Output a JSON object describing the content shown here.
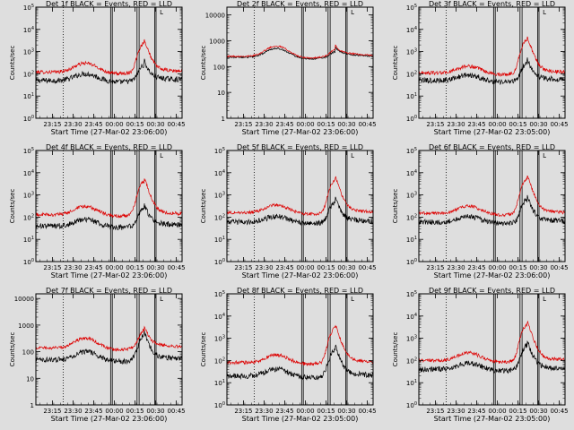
{
  "figure": {
    "x_ticks": [
      "23:15",
      "23:30",
      "23:45",
      "00:00",
      "00:15",
      "00:30",
      "00:45"
    ],
    "x_tick_hours": [
      -0.75,
      -0.5,
      -0.25,
      0,
      0.25,
      0.5,
      0.75
    ],
    "x_range_hours": [
      -0.95,
      0.82
    ],
    "xlabel": "Start Time (27-Mar-02 23:06:00)",
    "xlabel_alt": "Start Time (27-Mar-02 23:05:00)",
    "ylabel": "Counts/sec",
    "flare_marker_label": "L",
    "vertical_lines": {
      "dotted_hours": [
        -0.62
      ],
      "solid_pairs_hours": [
        [
          -0.045,
          -0.025
        ],
        [
          0.275,
          0.3
        ],
        [
          0.49,
          0.505
        ]
      ]
    },
    "colors": {
      "events": "#000000",
      "lld": "#dd0000",
      "background": "#dedede",
      "frame": "#000000"
    }
  },
  "chart_data": [
    {
      "type": "line",
      "title": "Det 1f BLACK = Events, RED = LLD",
      "xlabel": "Start Time (27-Mar-02 23:06:00)",
      "ylabel": "Counts/sec",
      "y_scale": "log",
      "ylim": [
        1,
        100000
      ],
      "y_ticks": [
        "10^0",
        "10^1",
        "10^2",
        "10^3",
        "10^4",
        "10^5"
      ],
      "series": [
        {
          "name": "Events",
          "color": "#000000",
          "base": 50,
          "bump": 2.0,
          "peak": 5,
          "peak_hour": 0.36,
          "noise": 0.12
        },
        {
          "name": "LLD",
          "color": "#dd0000",
          "base": 120,
          "bump": 2.5,
          "peak": 20,
          "peak_hour": 0.36,
          "noise": 0.08
        }
      ]
    },
    {
      "type": "line",
      "title": "Det 2f BLACK = Events, RED = LLD",
      "xlabel": "Start Time (27-Mar-02 23:06:00)",
      "ylabel": "Counts/sec",
      "y_scale": "log",
      "ylim": [
        1,
        20000
      ],
      "y_ticks": [
        "1",
        "10",
        "100",
        "1000",
        "10000"
      ],
      "series": [
        {
          "name": "Events",
          "color": "#000000",
          "base": 230,
          "bump": 2.2,
          "peak": 1.6,
          "peak_hour": 0.36,
          "noise": 0.03
        },
        {
          "name": "LLD",
          "color": "#dd0000",
          "base": 250,
          "bump": 2.5,
          "peak": 1.8,
          "peak_hour": 0.36,
          "noise": 0.03
        }
      ]
    },
    {
      "type": "line",
      "title": "Det 3f BLACK = Events, RED = LLD",
      "xlabel": "Start Time (27-Mar-02 23:05:00)",
      "ylabel": "Counts/sec",
      "y_scale": "log",
      "ylim": [
        1,
        100000
      ],
      "y_ticks": [
        "10^0",
        "10^1",
        "10^2",
        "10^3",
        "10^4",
        "10^5"
      ],
      "series": [
        {
          "name": "Events",
          "color": "#000000",
          "base": 50,
          "bump": 1.8,
          "peak": 6,
          "peak_hour": 0.36,
          "noise": 0.12
        },
        {
          "name": "LLD",
          "color": "#dd0000",
          "base": 110,
          "bump": 2.0,
          "peak": 30,
          "peak_hour": 0.36,
          "noise": 0.08
        }
      ]
    },
    {
      "type": "line",
      "title": "Det 4f BLACK = Events, RED = LLD",
      "xlabel": "Start Time (27-Mar-02 23:06:00)",
      "ylabel": "Counts/sec",
      "y_scale": "log",
      "ylim": [
        1,
        100000
      ],
      "y_ticks": [
        "10^0",
        "10^1",
        "10^2",
        "10^3",
        "10^4",
        "10^5"
      ],
      "series": [
        {
          "name": "Events",
          "color": "#000000",
          "base": 40,
          "bump": 2.0,
          "peak": 6,
          "peak_hour": 0.36,
          "noise": 0.12
        },
        {
          "name": "LLD",
          "color": "#dd0000",
          "base": 130,
          "bump": 2.3,
          "peak": 30,
          "peak_hour": 0.36,
          "noise": 0.08
        }
      ]
    },
    {
      "type": "line",
      "title": "Det 5f BLACK = Events, RED = LLD",
      "xlabel": "Start Time (27-Mar-02 23:06:00)",
      "ylabel": "Counts/sec",
      "y_scale": "log",
      "ylim": [
        1,
        100000
      ],
      "y_ticks": [
        "10^0",
        "10^1",
        "10^2",
        "10^3",
        "10^4",
        "10^5"
      ],
      "series": [
        {
          "name": "Events",
          "color": "#000000",
          "base": 60,
          "bump": 1.8,
          "peak": 8,
          "peak_hour": 0.36,
          "noise": 0.12
        },
        {
          "name": "LLD",
          "color": "#dd0000",
          "base": 160,
          "bump": 2.2,
          "peak": 28,
          "peak_hour": 0.36,
          "noise": 0.07
        }
      ]
    },
    {
      "type": "line",
      "title": "Det 6f BLACK = Events, RED = LLD",
      "xlabel": "Start Time (27-Mar-02 23:06:00)",
      "ylabel": "Counts/sec",
      "y_scale": "log",
      "ylim": [
        1,
        100000
      ],
      "y_ticks": [
        "10^0",
        "10^1",
        "10^2",
        "10^3",
        "10^4",
        "10^5"
      ],
      "series": [
        {
          "name": "Events",
          "color": "#000000",
          "base": 60,
          "bump": 1.8,
          "peak": 10,
          "peak_hour": 0.36,
          "noise": 0.12
        },
        {
          "name": "LLD",
          "color": "#dd0000",
          "base": 150,
          "bump": 2.1,
          "peak": 35,
          "peak_hour": 0.36,
          "noise": 0.07
        }
      ]
    },
    {
      "type": "line",
      "title": "Det 7f BLACK = Events, RED = LLD",
      "xlabel": "Start Time (27-Mar-02 23:06:00)",
      "ylabel": "Counts/sec",
      "y_scale": "log",
      "ylim": [
        1,
        15000
      ],
      "y_ticks": [
        "1",
        "10",
        "100",
        "1000",
        "10000"
      ],
      "series": [
        {
          "name": "Events",
          "color": "#000000",
          "base": 50,
          "bump": 2.0,
          "peak": 8,
          "peak_hour": 0.36,
          "noise": 0.1
        },
        {
          "name": "LLD",
          "color": "#dd0000",
          "base": 140,
          "bump": 2.3,
          "peak": 4.5,
          "peak_hour": 0.36,
          "noise": 0.06
        }
      ]
    },
    {
      "type": "line",
      "title": "Det 8f BLACK = Events, RED = LLD",
      "xlabel": "Start Time (27-Mar-02 23:05:00)",
      "ylabel": "Counts/sec",
      "y_scale": "log",
      "ylim": [
        1,
        100000
      ],
      "y_ticks": [
        "10^0",
        "10^1",
        "10^2",
        "10^3",
        "10^4",
        "10^5"
      ],
      "series": [
        {
          "name": "Events",
          "color": "#000000",
          "base": 20,
          "bump": 2.0,
          "peak": 15,
          "peak_hour": 0.36,
          "noise": 0.12
        },
        {
          "name": "LLD",
          "color": "#dd0000",
          "base": 80,
          "bump": 2.2,
          "peak": 35,
          "peak_hour": 0.36,
          "noise": 0.08
        }
      ]
    },
    {
      "type": "line",
      "title": "Det 9f BLACK = Events, RED = LLD",
      "xlabel": "Start Time (27-Mar-02 23:05:00)",
      "ylabel": "Counts/sec",
      "y_scale": "log",
      "ylim": [
        1,
        100000
      ],
      "y_ticks": [
        "10^0",
        "10^1",
        "10^2",
        "10^3",
        "10^4",
        "10^5"
      ],
      "series": [
        {
          "name": "Events",
          "color": "#000000",
          "base": 40,
          "bump": 1.9,
          "peak": 12,
          "peak_hour": 0.36,
          "noise": 0.12
        },
        {
          "name": "LLD",
          "color": "#dd0000",
          "base": 100,
          "bump": 2.2,
          "peak": 40,
          "peak_hour": 0.36,
          "noise": 0.08
        }
      ]
    }
  ]
}
